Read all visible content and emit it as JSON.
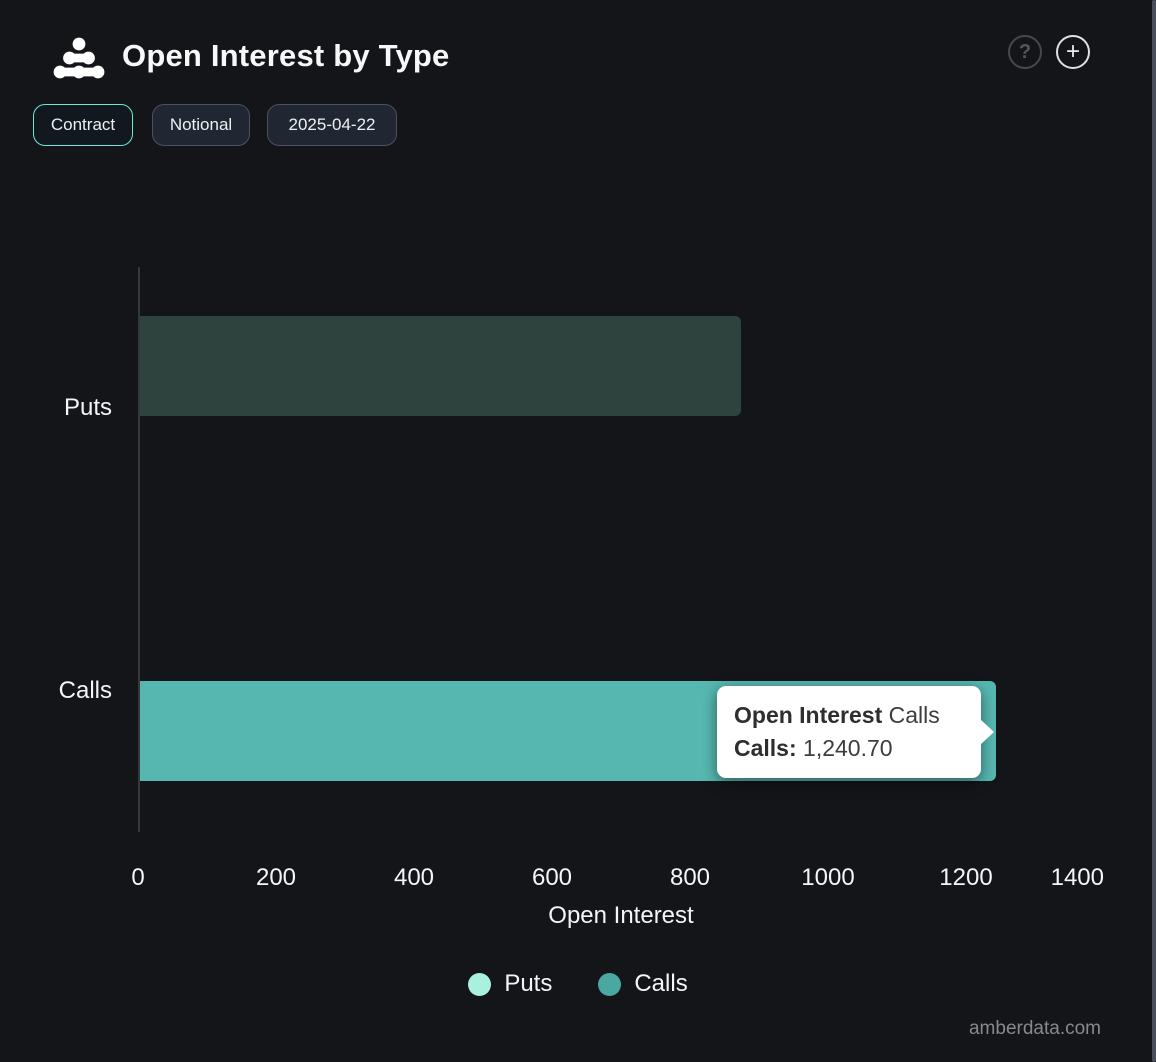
{
  "header": {
    "title": "Open Interest by Type",
    "help_glyph": "?",
    "add_glyph": "+"
  },
  "toolbar": {
    "buttons": [
      {
        "label": "Contract",
        "active": true
      },
      {
        "label": "Notional",
        "active": false
      },
      {
        "label": "2025-04-22",
        "active": false
      }
    ]
  },
  "chart_data": {
    "type": "bar",
    "orientation": "horizontal",
    "title": "Open Interest by Type",
    "categories": [
      "Puts",
      "Calls"
    ],
    "values": [
      871,
      1240.7
    ],
    "bar_colors": [
      "#2f433e",
      "#56b7b1"
    ],
    "xlabel": "Open Interest",
    "xlim": [
      0,
      1400
    ],
    "xticks": [
      0,
      200,
      400,
      600,
      800,
      1000,
      1200,
      1400
    ],
    "grid": false,
    "legend": {
      "position": "bottom",
      "items": [
        {
          "label": "Puts",
          "color": "#a9f0de"
        },
        {
          "label": "Calls",
          "color": "#4aa8a1"
        }
      ]
    },
    "tooltip": {
      "series_bold": "Open Interest",
      "series_rest": "Calls",
      "row_label": "Calls:",
      "row_value": "1,240.70"
    }
  },
  "footer": {
    "watermark": "amberdata.com"
  }
}
